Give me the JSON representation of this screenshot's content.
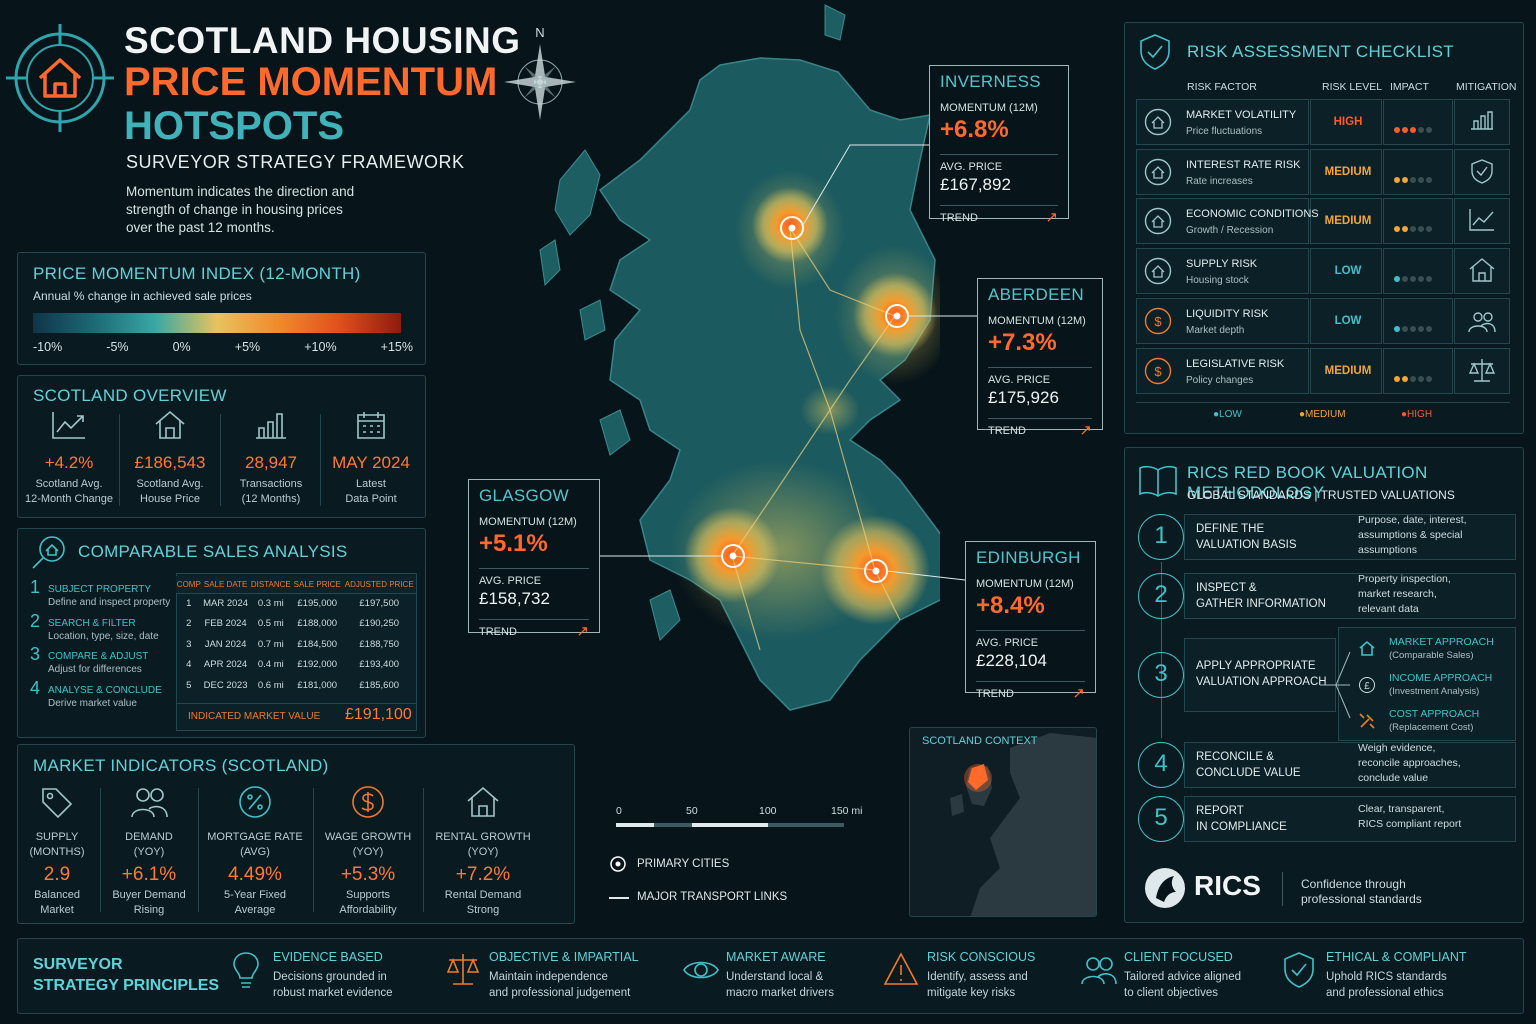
{
  "title": {
    "line1": "SCOTLAND HOUSING",
    "line2": "PRICE MOMENTUM",
    "line3": "HOTSPOTS",
    "subtitle": "SURVEYOR STRATEGY FRAMEWORK",
    "intro": "Momentum indicates the direction and strength of change in housing prices over the past 12 months."
  },
  "compass": {
    "n": "N"
  },
  "momentum_index": {
    "title": "PRICE MOMENTUM INDEX (12-MONTH)",
    "subtitle": "Annual % change in achieved sale prices",
    "ticks": [
      "-10%",
      "-5%",
      "0%",
      "+5%",
      "+10%",
      "+15%"
    ]
  },
  "overview": {
    "title": "SCOTLAND OVERVIEW",
    "items": [
      {
        "value": "+4.2%",
        "label1": "Scotland Avg.",
        "label2": "12-Month Change",
        "icon": "line-chart-icon"
      },
      {
        "value": "£186,543",
        "label1": "Scotland Avg.",
        "label2": "House Price",
        "icon": "house-icon"
      },
      {
        "value": "28,947",
        "label1": "Transactions",
        "label2": "(12 Months)",
        "icon": "bar-chart-icon"
      },
      {
        "value": "MAY 2024",
        "label1": "Latest",
        "label2": "Data Point",
        "icon": "calendar-icon"
      }
    ]
  },
  "comps": {
    "title": "COMPARABLE SALES ANALYSIS",
    "steps": [
      {
        "n": "1",
        "t": "SUBJECT PROPERTY",
        "d": "Define and inspect property"
      },
      {
        "n": "2",
        "t": "SEARCH & FILTER",
        "d": "Location, type, size, date"
      },
      {
        "n": "3",
        "t": "COMPARE & ADJUST",
        "d": "Adjust for differences"
      },
      {
        "n": "4",
        "t": "ANALYSE & CONCLUDE",
        "d": "Derive market value"
      }
    ],
    "headers": [
      "COMP",
      "SALE DATE",
      "DISTANCE",
      "SALE PRICE",
      "ADJUSTED PRICE"
    ],
    "rows": [
      [
        "1",
        "MAR 2024",
        "0.3 mi",
        "£195,000",
        "£197,500"
      ],
      [
        "2",
        "FEB 2024",
        "0.5 mi",
        "£188,000",
        "£190,250"
      ],
      [
        "3",
        "JAN 2024",
        "0.7 mi",
        "£184,500",
        "£188,750"
      ],
      [
        "4",
        "APR 2024",
        "0.4 mi",
        "£192,000",
        "£193,400"
      ],
      [
        "5",
        "DEC 2023",
        "0.6 mi",
        "£181,000",
        "£185,600"
      ]
    ],
    "indicated_label": "INDICATED MARKET VALUE",
    "indicated_value": "£191,100"
  },
  "market": {
    "title": "MARKET INDICATORS (SCOTLAND)",
    "items": [
      {
        "l1": "SUPPLY",
        "l2": "(MONTHS)",
        "v": "2.9",
        "s1": "Balanced",
        "s2": "Market",
        "icon": "tag-icon"
      },
      {
        "l1": "DEMAND",
        "l2": "(YOY)",
        "v": "+6.1%",
        "s1": "Buyer Demand",
        "s2": "Rising",
        "icon": "people-icon"
      },
      {
        "l1": "MORTGAGE RATE",
        "l2": "(AVG)",
        "v": "4.49%",
        "s1": "5-Year Fixed",
        "s2": "Average",
        "icon": "percent-icon"
      },
      {
        "l1": "WAGE GROWTH",
        "l2": "(YOY)",
        "v": "+5.3%",
        "s1": "Supports",
        "s2": "Affordability",
        "icon": "coin-icon"
      },
      {
        "l1": "RENTAL GROWTH",
        "l2": "(YOY)",
        "v": "+7.2%",
        "s1": "Rental Demand",
        "s2": "Strong",
        "icon": "house-icon"
      }
    ]
  },
  "cities": {
    "inverness": {
      "name": "INVERNESS",
      "mlabel": "MOMENTUM (12M)",
      "momentum": "+6.8%",
      "plabel": "AVG. PRICE",
      "price": "£167,892",
      "trend": "TREND",
      "arrow": "↗"
    },
    "aberdeen": {
      "name": "ABERDEEN",
      "mlabel": "MOMENTUM (12M)",
      "momentum": "+7.3%",
      "plabel": "AVG. PRICE",
      "price": "£175,926",
      "trend": "TREND",
      "arrow": "↗"
    },
    "glasgow": {
      "name": "GLASGOW",
      "mlabel": "MOMENTUM (12M)",
      "momentum": "+5.1%",
      "plabel": "AVG. PRICE",
      "price": "£158,732",
      "trend": "TREND",
      "arrow": "↗"
    },
    "edinburgh": {
      "name": "EDINBURGH",
      "mlabel": "MOMENTUM (12M)",
      "momentum": "+8.4%",
      "plabel": "AVG. PRICE",
      "price": "£228,104",
      "trend": "TREND",
      "arrow": "↗"
    }
  },
  "scalebar": {
    "labels": [
      "0",
      "50",
      "100",
      "150 mi"
    ]
  },
  "legend": {
    "cities": "PRIMARY CITIES",
    "transport": "MAJOR TRANSPORT LINKS"
  },
  "context": {
    "title": "SCOTLAND CONTEXT"
  },
  "risk": {
    "title": "RISK ASSESSMENT CHECKLIST",
    "headers": [
      "RISK FACTOR",
      "RISK LEVEL",
      "IMPACT",
      "MITIGATION"
    ],
    "rows": [
      {
        "name": "MARKET VOLATILITY",
        "sub": "Price fluctuations",
        "level": "HIGH",
        "color": "#ff5a2a",
        "filled": 3,
        "dotcolor": "#ff5a2a"
      },
      {
        "name": "INTEREST RATE RISK",
        "sub": "Rate increases",
        "level": "MEDIUM",
        "color": "#f4a534",
        "filled": 2,
        "dotcolor": "#f4a534"
      },
      {
        "name": "ECONOMIC CONDITIONS",
        "sub": "Growth / Recession",
        "level": "MEDIUM",
        "color": "#f4a534",
        "filled": 2,
        "dotcolor": "#f4a534"
      },
      {
        "name": "SUPPLY RISK",
        "sub": "Housing stock",
        "level": "LOW",
        "color": "#3fc1c9",
        "filled": 1,
        "dotcolor": "#3fc1c9"
      },
      {
        "name": "LIQUIDITY RISK",
        "sub": "Market depth",
        "level": "LOW",
        "color": "#3fc1c9",
        "filled": 1,
        "dotcolor": "#3fc1c9"
      },
      {
        "name": "LEGISLATIVE RISK",
        "sub": "Policy changes",
        "level": "MEDIUM",
        "color": "#f4a534",
        "filled": 2,
        "dotcolor": "#f4a534"
      }
    ],
    "legend": [
      "LOW",
      "MEDIUM",
      "HIGH"
    ]
  },
  "rics": {
    "title": "RICS RED BOOK VALUATION METHODOLOGY",
    "subtitle": "GLOBAL STANDARDS | TRUSTED VALUATIONS",
    "steps": [
      {
        "n": "1",
        "t1": "DEFINE THE",
        "t2": "VALUATION BASIS",
        "d1": "Purpose, date, interest,",
        "d2": "assumptions & special",
        "d3": "assumptions"
      },
      {
        "n": "2",
        "t1": "INSPECT &",
        "t2": "GATHER INFORMATION",
        "d1": "Property inspection,",
        "d2": "market research,",
        "d3": "relevant data"
      },
      {
        "n": "3",
        "t1": "APPLY APPROPRIATE",
        "t2": "VALUATION APPROACH"
      },
      {
        "n": "4",
        "t1": "RECONCILE &",
        "t2": "CONCLUDE VALUE",
        "d1": "Weigh evidence,",
        "d2": "reconcile approaches,",
        "d3": "conclude value"
      },
      {
        "n": "5",
        "t1": "REPORT",
        "t2": "IN COMPLIANCE",
        "d1": "Clear, transparent,",
        "d2": "RICS compliant report",
        "d3": ""
      }
    ],
    "approaches": [
      {
        "t": "MARKET APPROACH",
        "d": "(Comparable Sales)"
      },
      {
        "t": "INCOME APPROACH",
        "d": "(Investment Analysis)"
      },
      {
        "t": "COST APPROACH",
        "d": "(Replacement Cost)"
      }
    ],
    "logo": "RICS",
    "tagline1": "Confidence through",
    "tagline2": "professional standards"
  },
  "principles": {
    "title1": "SURVEYOR",
    "title2": "STRATEGY PRINCIPLES",
    "items": [
      {
        "t": "EVIDENCE BASED",
        "d1": "Decisions grounded in",
        "d2": "robust market evidence"
      },
      {
        "t": "OBJECTIVE & IMPARTIAL",
        "d1": "Maintain independence",
        "d2": "and professional judgement"
      },
      {
        "t": "MARKET AWARE",
        "d1": "Understand local &",
        "d2": "macro market drivers"
      },
      {
        "t": "RISK CONSCIOUS",
        "d1": "Identify, assess and",
        "d2": "mitigate key risks"
      },
      {
        "t": "CLIENT FOCUSED",
        "d1": "Tailored advice aligned",
        "d2": "to client objectives"
      },
      {
        "t": "ETHICAL & COMPLIANT",
        "d1": "Uphold RICS standards",
        "d2": "and professional ethics"
      }
    ]
  }
}
